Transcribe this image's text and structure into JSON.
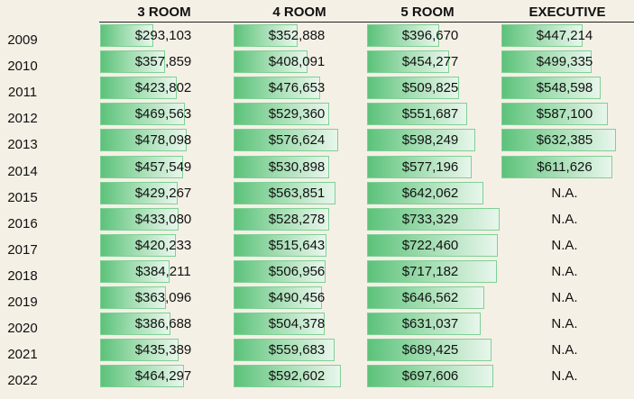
{
  "chart_data": {
    "type": "table",
    "columns": [
      "3 ROOM",
      "4 ROOM",
      "5 ROOM",
      "EXECUTIVE"
    ],
    "years": [
      "2009",
      "2010",
      "2011",
      "2012",
      "2013",
      "2014",
      "2015",
      "2016",
      "2017",
      "2018",
      "2019",
      "2020",
      "2021",
      "2022"
    ],
    "series": [
      {
        "name": "3 ROOM",
        "values": [
          293103,
          357859,
          423802,
          469563,
          478098,
          457549,
          429267,
          433080,
          420233,
          384211,
          363096,
          386688,
          435389,
          464297
        ]
      },
      {
        "name": "4 ROOM",
        "values": [
          352888,
          408091,
          476653,
          529360,
          576624,
          530898,
          563851,
          528278,
          515643,
          506956,
          490456,
          504378,
          559683,
          592602
        ]
      },
      {
        "name": "5 ROOM",
        "values": [
          396670,
          454277,
          509825,
          551687,
          598249,
          577196,
          642062,
          733329,
          722460,
          717182,
          646562,
          631037,
          689425,
          697606
        ]
      },
      {
        "name": "EXECUTIVE",
        "values": [
          447214,
          499335,
          548598,
          587100,
          632385,
          611626,
          null,
          null,
          null,
          null,
          null,
          null,
          null,
          null
        ]
      }
    ],
    "missing_label": "N.A.",
    "currency_prefix": "$",
    "bar_max_value": 733329,
    "colors": {
      "bar_dark": "#5cc27a",
      "bar_light": "#e8f6ec",
      "bar_border": "#7fd095",
      "background": "#f5f0e6"
    }
  }
}
